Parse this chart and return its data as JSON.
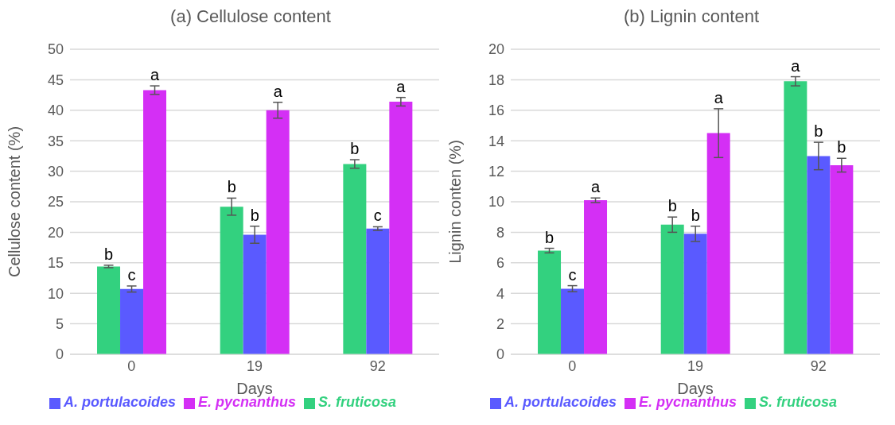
{
  "chart_data": [
    {
      "type": "bar",
      "title": "(a) Cellulose content",
      "xlabel": "Days",
      "ylabel": "Cellulose content (%)",
      "categories": [
        "0",
        "19",
        "92"
      ],
      "ylim": [
        0,
        50
      ],
      "yticks": [
        0,
        5,
        10,
        15,
        20,
        25,
        30,
        35,
        40,
        45,
        50
      ],
      "grid": "y",
      "legend": "bottom",
      "series": [
        {
          "name": "S. fruticosa",
          "color": "#33d17f",
          "values": [
            14.4,
            24.2,
            31.2
          ],
          "errors": [
            0.2,
            1.4,
            0.7
          ],
          "value_labels": [
            "b",
            "b",
            "b"
          ]
        },
        {
          "name": "A. portulacoides",
          "color": "#5a5aff",
          "values": [
            10.7,
            19.6,
            20.6
          ],
          "errors": [
            0.5,
            1.4,
            0.3
          ],
          "value_labels": [
            "c",
            "b",
            "c"
          ]
        },
        {
          "name": "E. pycnanthus",
          "color": "#d42ff5",
          "values": [
            43.3,
            40.0,
            41.4
          ],
          "errors": [
            0.7,
            1.3,
            0.7
          ],
          "value_labels": [
            "a",
            "a",
            "a"
          ]
        }
      ]
    },
    {
      "type": "bar",
      "title": "(b) Lignin content",
      "xlabel": "Days",
      "ylabel": "Lignin conten (%)",
      "categories": [
        "0",
        "19",
        "92"
      ],
      "ylim": [
        0,
        20
      ],
      "yticks": [
        0,
        2,
        4,
        6,
        8,
        10,
        12,
        14,
        16,
        18,
        20
      ],
      "grid": "y",
      "legend": "bottom",
      "series": [
        {
          "name": "S. fruticosa",
          "color": "#33d17f",
          "values": [
            6.8,
            8.5,
            17.9
          ],
          "errors": [
            0.15,
            0.5,
            0.3
          ],
          "value_labels": [
            "b",
            "b",
            "a"
          ]
        },
        {
          "name": "A. portulacoides",
          "color": "#5a5aff",
          "values": [
            4.3,
            7.9,
            13.0
          ],
          "errors": [
            0.2,
            0.5,
            0.9
          ],
          "value_labels": [
            "c",
            "b",
            "b"
          ]
        },
        {
          "name": "E. pycnanthus",
          "color": "#d42ff5",
          "values": [
            10.1,
            14.5,
            12.4
          ],
          "errors": [
            0.15,
            1.6,
            0.45
          ],
          "value_labels": [
            "a",
            "a",
            "b"
          ]
        }
      ]
    }
  ]
}
